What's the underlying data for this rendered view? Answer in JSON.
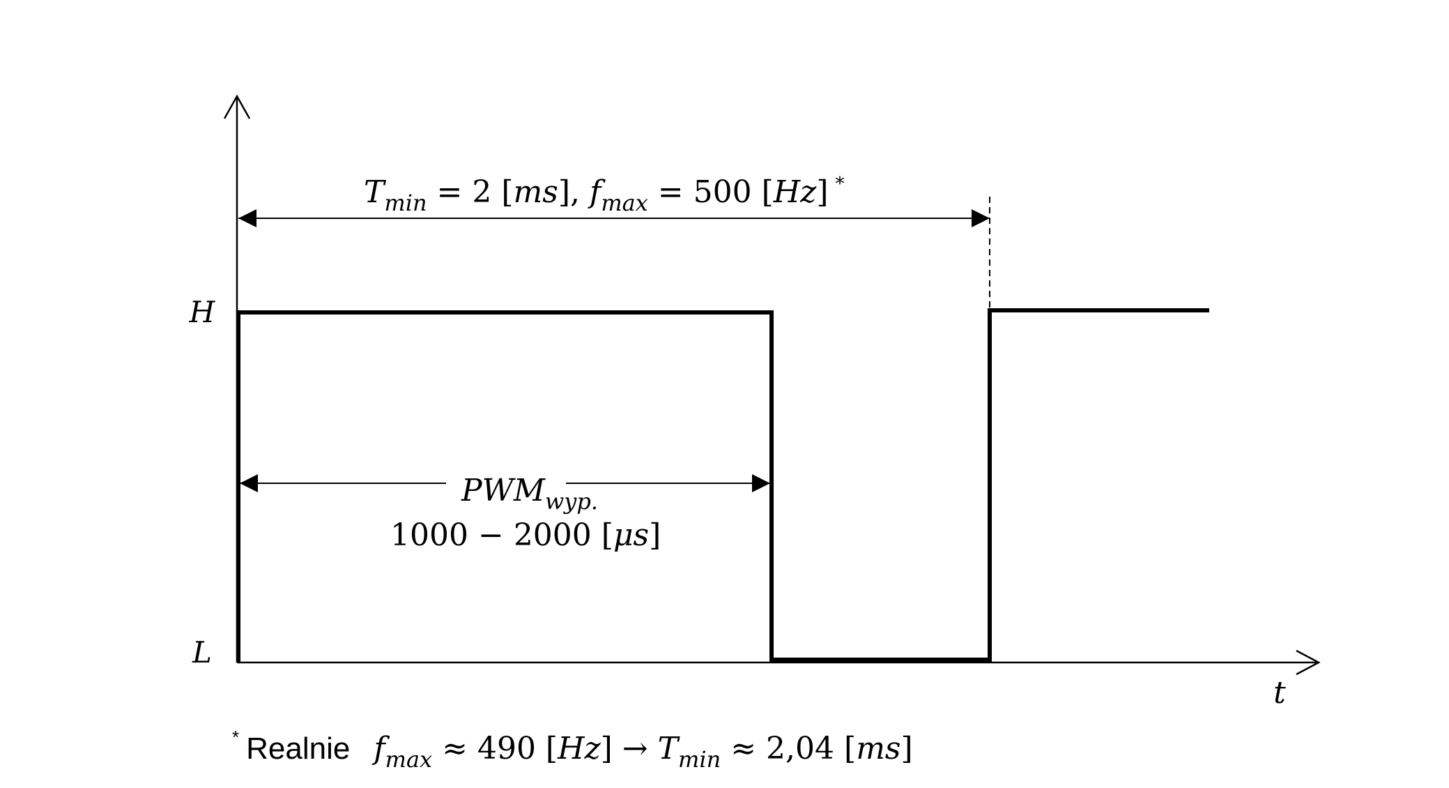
{
  "diagram": {
    "axes": {
      "y_high_label": "H",
      "y_low_label": "L",
      "x_label": "t"
    },
    "period_annotation": {
      "T_symbol": "T",
      "T_sub": "min",
      "T_rest": " = 2 [",
      "T_unit": "ms",
      "T_close": "],",
      "f_symbol": "f",
      "f_sub": "max",
      "f_rest": " = 500 [",
      "f_unit": "Hz",
      "f_close": "]",
      "asterisk": "*"
    },
    "pwm_annotation": {
      "name": "PWM",
      "name_sub": "wyp.",
      "range_value": "1000 − 2000 [",
      "range_unit": "μs",
      "range_close": "]"
    },
    "footnote": {
      "marker": "*",
      "word": "Realnie",
      "f_symbol": "f",
      "f_sub": "max",
      "f_mid": " ≈ 490 [",
      "f_unit": "Hz",
      "arrow": "] → ",
      "T_symbol": "T",
      "T_sub": "min",
      "T_mid": " ≈ 2,04 [",
      "T_unit": "ms",
      "T_close": "]"
    },
    "colors": {
      "signal": "#000000",
      "background": "#ffffff"
    }
  }
}
